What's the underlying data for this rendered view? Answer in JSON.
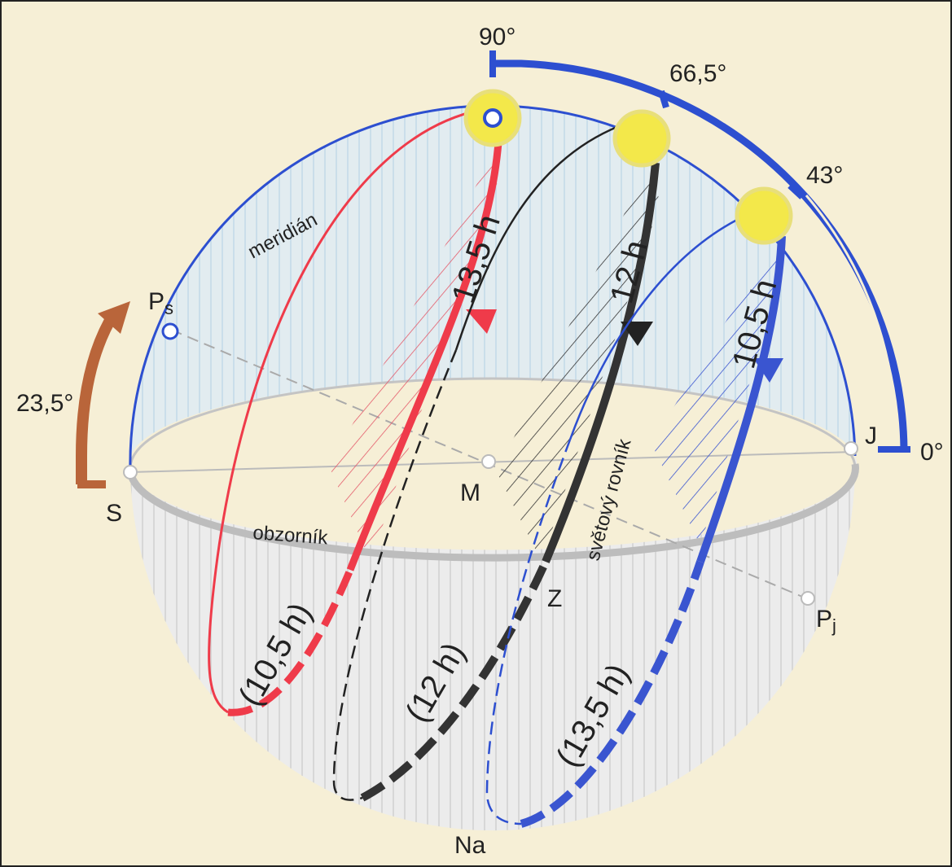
{
  "angles": {
    "zenith": "90°",
    "summer": "66,5°",
    "equinox": "43°",
    "horizon": "0°",
    "tilt": "23,5°"
  },
  "points": {
    "north": "S",
    "center": "M",
    "south": "J",
    "west": "Z",
    "nadir": "Na",
    "pole_north": {
      "main": "P",
      "sub": "s"
    },
    "pole_south": {
      "main": "P",
      "sub": "j"
    }
  },
  "circles": {
    "meridian": "meridián",
    "horizon": "obzorník",
    "equator": "světový rovník"
  },
  "day_lengths": {
    "summer": "13,5 h",
    "equinox": "12 h",
    "winter": "10,5 h"
  },
  "night_lengths": {
    "summer": "(10,5 h)",
    "equinox": "(12 h)",
    "winter": "(13,5 h)"
  }
}
